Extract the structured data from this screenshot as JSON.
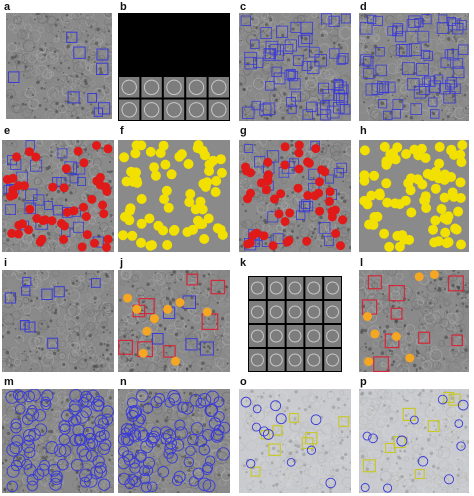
{
  "figure": {
    "panels": [
      {
        "id": "a",
        "label": "a",
        "kind": "micrograph",
        "markers": "blue-squares-sparse"
      },
      {
        "id": "b",
        "label": "b",
        "kind": "montage-dark"
      },
      {
        "id": "c",
        "label": "c",
        "kind": "micrograph",
        "markers": "blue-squares-dense"
      },
      {
        "id": "d",
        "label": "d",
        "kind": "micrograph",
        "markers": "blue-squares-dense"
      },
      {
        "id": "e",
        "label": "e",
        "kind": "micrograph",
        "markers": "blue-squares-red-dots"
      },
      {
        "id": "f",
        "label": "f",
        "kind": "dots",
        "markers": "yellow-dots"
      },
      {
        "id": "g",
        "label": "g",
        "kind": "micrograph",
        "markers": "blue-squares-red-dots"
      },
      {
        "id": "h",
        "label": "h",
        "kind": "dots",
        "markers": "yellow-dots-dense"
      },
      {
        "id": "i",
        "label": "i",
        "kind": "micrograph",
        "markers": "blue-squares-sparse"
      },
      {
        "id": "j",
        "label": "j",
        "kind": "micrograph",
        "markers": "red-blue-squares-orange-dots"
      },
      {
        "id": "k",
        "label": "k",
        "kind": "montage-grid"
      },
      {
        "id": "l",
        "label": "l",
        "kind": "micrograph",
        "markers": "red-squares-orange-dots"
      },
      {
        "id": "m",
        "label": "m",
        "kind": "micrograph",
        "markers": "blue-circles-dense"
      },
      {
        "id": "n",
        "label": "n",
        "kind": "micrograph",
        "markers": "blue-circles-dense"
      },
      {
        "id": "o",
        "label": "o",
        "kind": "micrograph-light",
        "markers": "yellow-squares-blue-circles"
      },
      {
        "id": "p",
        "label": "p",
        "kind": "micrograph-light",
        "markers": "yellow-squares-blue-circles"
      }
    ],
    "colors": {
      "micrograph_bg": "#8a8a8a",
      "micrograph_light_bg": "#c9cbd0",
      "blue_marker": "#3a3ad6",
      "red_marker": "#e01919",
      "red_box": "#d2283a",
      "yellow_dot": "#f2e000",
      "orange_dot": "#f5a623",
      "yellow_box": "#c8c81e",
      "montage_black": "#000000"
    }
  }
}
